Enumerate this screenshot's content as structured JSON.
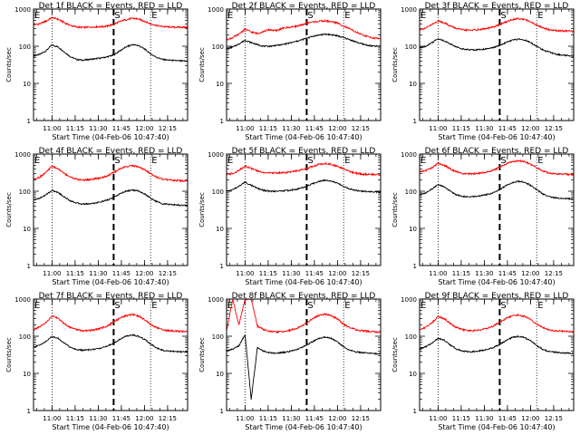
{
  "x_ticks": [
    {
      "t": 660,
      "label": "11:00"
    },
    {
      "t": 675,
      "label": "11:15"
    },
    {
      "t": 690,
      "label": "11:30"
    },
    {
      "t": 705,
      "label": "11:45"
    },
    {
      "t": 720,
      "label": "12:00"
    },
    {
      "t": 735,
      "label": "12:15"
    }
  ],
  "y_ticks": [
    {
      "v": 1,
      "label": "1"
    },
    {
      "v": 10,
      "label": "10"
    },
    {
      "v": 100,
      "label": "100"
    },
    {
      "v": 1000,
      "label": "1000"
    }
  ],
  "colors": {
    "events": "#000000",
    "lld": "#ff0000"
  },
  "chart_data": [
    {
      "type": "line",
      "detector": "1f",
      "title": "Det 1f BLACK = Events, RED = LLD",
      "xlabel": "Start Time (04-Feb-06 10:47:40)",
      "ylabel": "Counts/sec",
      "yscale": "log",
      "ylim": [
        1,
        1000
      ],
      "xlim": [
        648,
        748
      ],
      "markers": [
        {
          "label": "E",
          "t": 648,
          "style": "none"
        },
        {
          "label": "",
          "t": 660,
          "style": "dotted"
        },
        {
          "label": "S",
          "t": 700,
          "style": "dashed"
        },
        {
          "label": "E",
          "t": 724,
          "style": "dotted"
        }
      ],
      "x": [
        648,
        652,
        656,
        660,
        664,
        668,
        672,
        676,
        680,
        684,
        688,
        692,
        696,
        700,
        704,
        708,
        712,
        716,
        720,
        724,
        728,
        732,
        736,
        740,
        744,
        748
      ],
      "series": [
        {
          "name": "Events",
          "values": [
            55,
            60,
            75,
            108,
            95,
            70,
            52,
            44,
            42,
            44,
            46,
            48,
            52,
            58,
            75,
            95,
            110,
            105,
            85,
            62,
            50,
            44,
            42,
            41,
            40,
            40
          ]
        },
        {
          "name": "LLD",
          "values": [
            380,
            400,
            470,
            590,
            530,
            430,
            360,
            330,
            320,
            325,
            330,
            335,
            350,
            390,
            460,
            520,
            560,
            540,
            470,
            400,
            360,
            340,
            330,
            325,
            325,
            320
          ]
        }
      ]
    },
    {
      "type": "line",
      "detector": "2f",
      "title": "Det 2f BLACK = Events, RED = LLD",
      "xlabel": "Start Time (04-Feb-06 10:47:40)",
      "ylabel": "Counts/sec",
      "yscale": "log",
      "ylim": [
        1,
        1000
      ],
      "xlim": [
        648,
        748
      ],
      "markers": [
        {
          "label": "E",
          "t": 648,
          "style": "none"
        },
        {
          "label": "",
          "t": 660,
          "style": "dotted"
        },
        {
          "label": "S",
          "t": 700,
          "style": "dashed"
        },
        {
          "label": "E",
          "t": 724,
          "style": "dotted"
        }
      ],
      "x": [
        648,
        652,
        656,
        660,
        664,
        668,
        672,
        676,
        680,
        684,
        688,
        692,
        696,
        700,
        704,
        708,
        712,
        716,
        720,
        724,
        728,
        732,
        736,
        740,
        744,
        748
      ],
      "series": [
        {
          "name": "Events",
          "values": [
            85,
            95,
            115,
            145,
            125,
            110,
            100,
            100,
            105,
            110,
            120,
            130,
            145,
            165,
            185,
            200,
            210,
            205,
            190,
            170,
            150,
            130,
            115,
            105,
            100,
            100
          ]
        },
        {
          "name": "LLD",
          "values": [
            150,
            170,
            210,
            290,
            240,
            220,
            250,
            280,
            260,
            300,
            320,
            340,
            360,
            420,
            450,
            470,
            480,
            460,
            420,
            350,
            290,
            240,
            200,
            180,
            165,
            160
          ]
        }
      ]
    },
    {
      "type": "line",
      "detector": "3f",
      "title": "Det 3f BLACK = Events, RED = LLD",
      "xlabel": "Start Time (04-Feb-06 10:47:40)",
      "ylabel": "Counts/sec",
      "yscale": "log",
      "ylim": [
        1,
        1000
      ],
      "xlim": [
        648,
        748
      ],
      "markers": [
        {
          "label": "E",
          "t": 648,
          "style": "none"
        },
        {
          "label": "",
          "t": 660,
          "style": "dotted"
        },
        {
          "label": "S",
          "t": 700,
          "style": "dashed"
        },
        {
          "label": "E",
          "t": 724,
          "style": "dotted"
        }
      ],
      "x": [
        648,
        652,
        656,
        660,
        664,
        668,
        672,
        676,
        680,
        684,
        688,
        692,
        696,
        700,
        704,
        708,
        712,
        716,
        720,
        724,
        728,
        732,
        736,
        740,
        744,
        748
      ],
      "series": [
        {
          "name": "Events",
          "values": [
            90,
            100,
            125,
            160,
            140,
            115,
            95,
            85,
            80,
            80,
            82,
            85,
            92,
            105,
            125,
            145,
            155,
            148,
            125,
            100,
            80,
            70,
            62,
            58,
            56,
            55
          ]
        },
        {
          "name": "LLD",
          "values": [
            280,
            310,
            380,
            480,
            430,
            350,
            300,
            275,
            270,
            275,
            285,
            300,
            330,
            380,
            450,
            520,
            560,
            530,
            450,
            370,
            310,
            280,
            265,
            260,
            255,
            250
          ]
        }
      ]
    },
    {
      "type": "line",
      "detector": "4f",
      "title": "Det 4f BLACK = Events, RED = LLD",
      "xlabel": "Start Time (04-Feb-06 10:47:40)",
      "ylabel": "Counts/sec",
      "yscale": "log",
      "ylim": [
        1,
        1000
      ],
      "xlim": [
        648,
        748
      ],
      "markers": [
        {
          "label": "E",
          "t": 648,
          "style": "none"
        },
        {
          "label": "",
          "t": 660,
          "style": "dotted"
        },
        {
          "label": "S",
          "t": 700,
          "style": "dashed"
        },
        {
          "label": "E",
          "t": 724,
          "style": "dotted"
        }
      ],
      "x": [
        648,
        652,
        656,
        660,
        664,
        668,
        672,
        676,
        680,
        684,
        688,
        692,
        696,
        700,
        704,
        708,
        712,
        716,
        720,
        724,
        728,
        732,
        736,
        740,
        744,
        748
      ],
      "series": [
        {
          "name": "Events",
          "values": [
            58,
            65,
            80,
            105,
            92,
            70,
            55,
            48,
            45,
            46,
            48,
            52,
            58,
            68,
            85,
            100,
            108,
            102,
            85,
            65,
            52,
            46,
            44,
            43,
            42,
            42
          ]
        },
        {
          "name": "LLD",
          "values": [
            210,
            240,
            320,
            470,
            400,
            300,
            240,
            210,
            200,
            205,
            215,
            230,
            260,
            320,
            400,
            460,
            490,
            460,
            380,
            300,
            240,
            210,
            200,
            195,
            190,
            190
          ]
        }
      ]
    },
    {
      "type": "line",
      "detector": "5f",
      "title": "Det 5f BLACK = Events, RED = LLD",
      "xlabel": "Start Time (04-Feb-06 10:47:40)",
      "ylabel": "Counts/sec",
      "yscale": "log",
      "ylim": [
        1,
        1000
      ],
      "xlim": [
        648,
        748
      ],
      "markers": [
        {
          "label": "E",
          "t": 648,
          "style": "none"
        },
        {
          "label": "",
          "t": 660,
          "style": "dotted"
        },
        {
          "label": "S",
          "t": 700,
          "style": "dashed"
        },
        {
          "label": "E",
          "t": 724,
          "style": "dotted"
        }
      ],
      "x": [
        648,
        652,
        656,
        660,
        664,
        668,
        672,
        676,
        680,
        684,
        688,
        692,
        696,
        700,
        704,
        708,
        712,
        716,
        720,
        724,
        728,
        732,
        736,
        740,
        744,
        748
      ],
      "series": [
        {
          "name": "Events",
          "values": [
            100,
            110,
            135,
            175,
            145,
            120,
            105,
            100,
            100,
            102,
            105,
            110,
            120,
            135,
            160,
            185,
            200,
            190,
            165,
            135,
            115,
            105,
            100,
            98,
            96,
            95
          ]
        },
        {
          "name": "LLD",
          "values": [
            280,
            300,
            360,
            480,
            410,
            350,
            320,
            310,
            310,
            315,
            325,
            340,
            365,
            410,
            470,
            530,
            560,
            530,
            470,
            400,
            340,
            305,
            290,
            285,
            280,
            280
          ]
        }
      ]
    },
    {
      "type": "line",
      "detector": "6f",
      "title": "Det 6f BLACK = Events, RED = LLD",
      "xlabel": "Start Time (04-Feb-06 10:47:40)",
      "ylabel": "Counts/sec",
      "yscale": "log",
      "ylim": [
        1,
        1000
      ],
      "xlim": [
        648,
        748
      ],
      "markers": [
        {
          "label": "E",
          "t": 648,
          "style": "none"
        },
        {
          "label": "",
          "t": 660,
          "style": "dotted"
        },
        {
          "label": "S",
          "t": 700,
          "style": "dashed"
        },
        {
          "label": "E",
          "t": 724,
          "style": "dotted"
        }
      ],
      "x": [
        648,
        652,
        656,
        660,
        664,
        668,
        672,
        676,
        680,
        684,
        688,
        692,
        696,
        700,
        704,
        708,
        712,
        716,
        720,
        724,
        728,
        732,
        736,
        740,
        744,
        748
      ],
      "series": [
        {
          "name": "Events",
          "values": [
            80,
            90,
            115,
            150,
            130,
            100,
            80,
            72,
            70,
            72,
            76,
            82,
            92,
            110,
            140,
            170,
            185,
            175,
            145,
            110,
            85,
            72,
            66,
            64,
            63,
            62
          ]
        },
        {
          "name": "LLD",
          "values": [
            330,
            360,
            430,
            560,
            500,
            400,
            330,
            300,
            290,
            295,
            310,
            330,
            370,
            440,
            540,
            620,
            660,
            630,
            530,
            430,
            350,
            310,
            295,
            290,
            285,
            280
          ]
        }
      ]
    },
    {
      "type": "line",
      "detector": "7f",
      "title": "Det 7f BLACK = Events, RED = LLD",
      "xlabel": "Start Time (04-Feb-06 10:47:40)",
      "ylabel": "Counts/sec",
      "yscale": "log",
      "ylim": [
        1,
        1000
      ],
      "xlim": [
        648,
        748
      ],
      "markers": [
        {
          "label": "E",
          "t": 648,
          "style": "none"
        },
        {
          "label": "",
          "t": 660,
          "style": "dotted"
        },
        {
          "label": "S",
          "t": 700,
          "style": "dashed"
        },
        {
          "label": "E",
          "t": 724,
          "style": "dotted"
        }
      ],
      "x": [
        648,
        652,
        656,
        660,
        664,
        668,
        672,
        676,
        680,
        684,
        688,
        692,
        696,
        700,
        704,
        708,
        712,
        716,
        720,
        724,
        728,
        732,
        736,
        740,
        744,
        748
      ],
      "series": [
        {
          "name": "Events",
          "values": [
            50,
            58,
            72,
            98,
            88,
            65,
            50,
            44,
            42,
            43,
            45,
            48,
            55,
            65,
            82,
            100,
            108,
            100,
            82,
            62,
            48,
            42,
            40,
            39,
            38,
            38
          ]
        },
        {
          "name": "LLD",
          "values": [
            150,
            175,
            230,
            350,
            300,
            220,
            170,
            150,
            140,
            142,
            150,
            165,
            190,
            240,
            310,
            360,
            380,
            350,
            280,
            210,
            170,
            150,
            140,
            138,
            135,
            135
          ]
        }
      ]
    },
    {
      "type": "line",
      "detector": "8f",
      "title": "Det 8f BLACK = Events, RED = LLD",
      "xlabel": "Start Time (04-Feb-06 10:47:40)",
      "ylabel": "Counts/sec",
      "yscale": "log",
      "ylim": [
        1,
        1000
      ],
      "xlim": [
        648,
        748
      ],
      "markers": [
        {
          "label": "E",
          "t": 648,
          "style": "none"
        },
        {
          "label": "",
          "t": 660,
          "style": "dotted"
        },
        {
          "label": "S",
          "t": 700,
          "style": "dashed"
        },
        {
          "label": "E",
          "t": 724,
          "style": "dotted"
        }
      ],
      "x": [
        648,
        652,
        656,
        660,
        664,
        668,
        672,
        676,
        680,
        684,
        688,
        692,
        696,
        700,
        704,
        708,
        712,
        716,
        720,
        724,
        728,
        732,
        736,
        740,
        744,
        748
      ],
      "series": [
        {
          "name": "Events",
          "values": [
            40,
            45,
            55,
            110,
            2,
            50,
            40,
            36,
            35,
            36,
            38,
            42,
            48,
            58,
            72,
            88,
            95,
            88,
            70,
            52,
            42,
            38,
            36,
            35,
            34,
            34
          ]
        },
        {
          "name": "LLD",
          "values": [
            140,
            1000,
            200,
            1000,
            1000,
            190,
            150,
            135,
            130,
            132,
            140,
            155,
            180,
            230,
            300,
            360,
            390,
            360,
            290,
            210,
            170,
            150,
            140,
            135,
            132,
            130
          ]
        }
      ]
    },
    {
      "type": "line",
      "detector": "9f",
      "title": "Det 9f BLACK = Events, RED = LLD",
      "xlabel": "Start Time (04-Feb-06 10:47:40)",
      "ylabel": "Counts/sec",
      "yscale": "log",
      "ylim": [
        1,
        1000
      ],
      "xlim": [
        648,
        748
      ],
      "markers": [
        {
          "label": "E",
          "t": 648,
          "style": "none"
        },
        {
          "label": "",
          "t": 660,
          "style": "dotted"
        },
        {
          "label": "S",
          "t": 700,
          "style": "dashed"
        },
        {
          "label": "E",
          "t": 724,
          "style": "dotted"
        }
      ],
      "x": [
        648,
        652,
        656,
        660,
        664,
        668,
        672,
        676,
        680,
        684,
        688,
        692,
        696,
        700,
        704,
        708,
        712,
        716,
        720,
        724,
        728,
        732,
        736,
        740,
        744,
        748
      ],
      "series": [
        {
          "name": "Events",
          "values": [
            45,
            52,
            65,
            88,
            78,
            58,
            45,
            40,
            38,
            39,
            41,
            44,
            50,
            60,
            76,
            92,
            100,
            93,
            75,
            56,
            44,
            39,
            37,
            36,
            35,
            35
          ]
        },
        {
          "name": "LLD",
          "values": [
            150,
            175,
            230,
            340,
            300,
            220,
            170,
            150,
            140,
            142,
            150,
            165,
            190,
            240,
            300,
            350,
            370,
            345,
            280,
            210,
            170,
            150,
            140,
            137,
            134,
            133
          ]
        }
      ]
    }
  ]
}
